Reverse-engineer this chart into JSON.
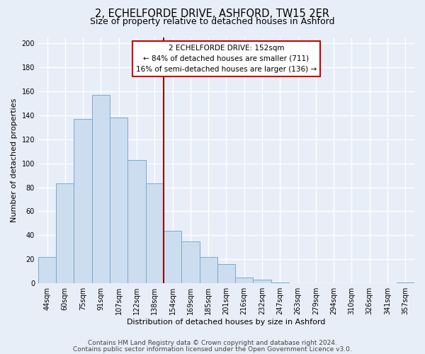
{
  "title": "2, ECHELFORDE DRIVE, ASHFORD, TW15 2ER",
  "subtitle": "Size of property relative to detached houses in Ashford",
  "xlabel": "Distribution of detached houses by size in Ashford",
  "ylabel": "Number of detached properties",
  "bar_labels": [
    "44sqm",
    "60sqm",
    "75sqm",
    "91sqm",
    "107sqm",
    "122sqm",
    "138sqm",
    "154sqm",
    "169sqm",
    "185sqm",
    "201sqm",
    "216sqm",
    "232sqm",
    "247sqm",
    "263sqm",
    "279sqm",
    "294sqm",
    "310sqm",
    "326sqm",
    "341sqm",
    "357sqm"
  ],
  "bar_values": [
    22,
    83,
    137,
    157,
    138,
    103,
    83,
    44,
    35,
    22,
    16,
    5,
    3,
    1,
    0,
    0,
    0,
    0,
    0,
    0,
    1
  ],
  "bar_color": "#ccddef",
  "bar_edge_color": "#7aaad0",
  "vline_color": "#990000",
  "annotation_title": "2 ECHELFORDE DRIVE: 152sqm",
  "annotation_line1": "← 84% of detached houses are smaller (711)",
  "annotation_line2": "16% of semi-detached houses are larger (136) →",
  "annotation_box_color": "white",
  "annotation_box_edge_color": "#cc0000",
  "ylim": [
    0,
    205
  ],
  "yticks": [
    0,
    20,
    40,
    60,
    80,
    100,
    120,
    140,
    160,
    180,
    200
  ],
  "footer1": "Contains HM Land Registry data © Crown copyright and database right 2024.",
  "footer2": "Contains public sector information licensed under the Open Government Licence v3.0.",
  "bg_color": "#e8eef7",
  "plot_bg_color": "#e8eef7",
  "grid_color": "#ffffff",
  "title_fontsize": 10.5,
  "subtitle_fontsize": 9,
  "axis_label_fontsize": 8,
  "tick_fontsize": 7,
  "annotation_fontsize": 7.5,
  "footer_fontsize": 6.5
}
